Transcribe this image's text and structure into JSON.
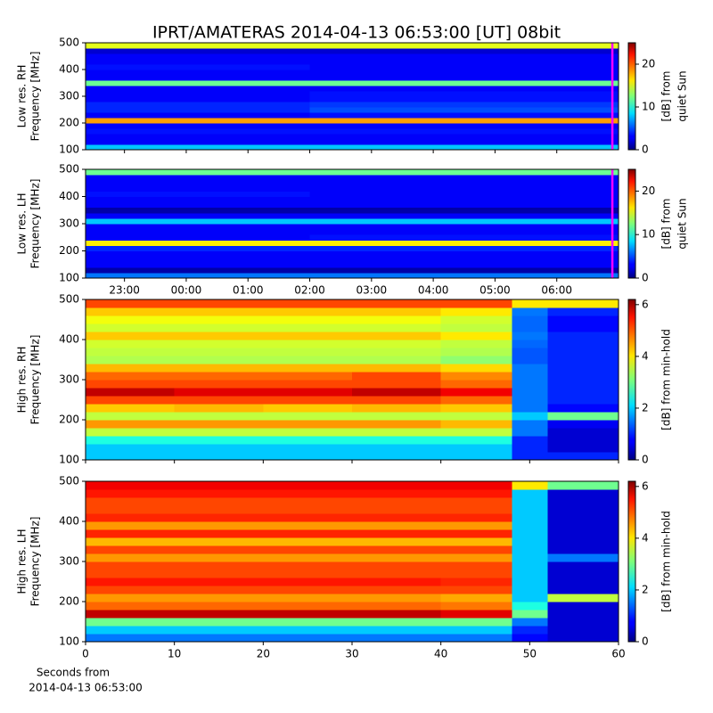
{
  "title": "IPRT/AMATERAS 2014-04-13 06:53:00 [UT]   08bit",
  "chart_data": [
    {
      "type": "heatmap",
      "colormap": "jet",
      "ylabel": [
        "Low res. RH",
        "Frequency [MHz]"
      ],
      "clabel": [
        "[dB] from",
        "quiet Sun"
      ],
      "ylim": [
        100,
        500
      ],
      "yticks": [
        100,
        200,
        300,
        400,
        500
      ],
      "xlim": [
        22.37,
        31.0
      ],
      "xticks": [
        {
          "value": 23,
          "label": "23:00"
        },
        {
          "value": 24,
          "label": "00:00"
        },
        {
          "value": 25,
          "label": "01:00"
        },
        {
          "value": 26,
          "label": "02:00"
        },
        {
          "value": 27,
          "label": "03:00"
        },
        {
          "value": 28,
          "label": "04:00"
        },
        {
          "value": 29,
          "label": "05:00"
        },
        {
          "value": 30,
          "label": "06:00"
        }
      ],
      "xtick_labels": false,
      "zlim": [
        0,
        25
      ],
      "zticks": [
        0,
        10,
        20
      ],
      "marker": {
        "x": 30.9,
        "color": "#ff00ff"
      },
      "x_bins": [
        22.37,
        26.0,
        31.0
      ],
      "y_bins": [
        100,
        120,
        140,
        160,
        180,
        200,
        220,
        240,
        260,
        280,
        300,
        320,
        340,
        360,
        380,
        400,
        420,
        440,
        460,
        480,
        500
      ],
      "values": [
        [
          8,
          8
        ],
        [
          3,
          3
        ],
        [
          3,
          3
        ],
        [
          3.5,
          3.5
        ],
        [
          3,
          3
        ],
        [
          18,
          18
        ],
        [
          3,
          3.5
        ],
        [
          4,
          5
        ],
        [
          4,
          4.5
        ],
        [
          3,
          3.5
        ],
        [
          3,
          3.5
        ],
        [
          3,
          3
        ],
        [
          12,
          12
        ],
        [
          3,
          3
        ],
        [
          3,
          3
        ],
        [
          3.5,
          3
        ],
        [
          3,
          3
        ],
        [
          3,
          3
        ],
        [
          2,
          2
        ],
        [
          15,
          15
        ]
      ]
    },
    {
      "type": "heatmap",
      "colormap": "jet",
      "ylabel": [
        "Low res. LH",
        "Frequency [MHz]"
      ],
      "clabel": [
        "[dB] from",
        "quiet Sun"
      ],
      "ylim": [
        100,
        500
      ],
      "yticks": [
        100,
        200,
        300,
        400,
        500
      ],
      "xlim": [
        22.37,
        31.0
      ],
      "xticks": [
        {
          "value": 23,
          "label": "23:00"
        },
        {
          "value": 24,
          "label": "00:00"
        },
        {
          "value": 25,
          "label": "01:00"
        },
        {
          "value": 26,
          "label": "02:00"
        },
        {
          "value": 27,
          "label": "03:00"
        },
        {
          "value": 28,
          "label": "04:00"
        },
        {
          "value": 29,
          "label": "05:00"
        },
        {
          "value": 30,
          "label": "06:00"
        }
      ],
      "xtick_labels": true,
      "zlim": [
        0,
        25
      ],
      "zticks": [
        0,
        10,
        20
      ],
      "marker": {
        "x": 30.9,
        "color": "#ff00ff"
      },
      "x_bins": [
        22.37,
        26.0,
        31.0
      ],
      "y_bins": [
        100,
        120,
        140,
        160,
        180,
        200,
        220,
        240,
        260,
        280,
        300,
        320,
        340,
        360,
        380,
        400,
        420,
        440,
        460,
        480,
        500
      ],
      "values": [
        [
          6,
          6
        ],
        [
          1,
          1
        ],
        [
          3,
          3
        ],
        [
          3,
          3
        ],
        [
          3,
          3
        ],
        [
          4,
          4
        ],
        [
          16,
          16
        ],
        [
          3,
          3.5
        ],
        [
          3,
          3
        ],
        [
          3,
          3
        ],
        [
          8,
          8
        ],
        [
          3,
          3
        ],
        [
          1,
          1
        ],
        [
          3,
          3
        ],
        [
          3,
          3
        ],
        [
          3.5,
          3
        ],
        [
          3,
          3
        ],
        [
          3,
          3
        ],
        [
          3,
          3
        ],
        [
          12,
          12
        ]
      ]
    },
    {
      "type": "heatmap",
      "colormap": "jet",
      "ylabel": [
        "High res. RH",
        "Frequency [MHz]"
      ],
      "clabel": [
        "[dB] from min-hold"
      ],
      "ylim": [
        100,
        500
      ],
      "yticks": [
        100,
        200,
        300,
        400,
        500
      ],
      "xlim": [
        0,
        60
      ],
      "xticks": [
        0,
        10,
        20,
        30,
        40,
        50,
        60
      ],
      "xtick_labels": false,
      "zlim": [
        0,
        6.2
      ],
      "zticks": [
        0,
        2,
        4,
        6
      ],
      "x_bins": [
        0,
        10,
        20,
        30,
        40,
        48,
        52,
        60
      ],
      "y_bins": [
        100,
        120,
        140,
        160,
        180,
        200,
        220,
        240,
        260,
        280,
        300,
        320,
        340,
        360,
        380,
        400,
        420,
        440,
        460,
        480,
        500
      ],
      "values": [
        [
          2,
          2,
          2,
          2,
          2,
          1,
          1
        ],
        [
          2,
          2,
          2,
          2,
          2,
          1,
          0.5
        ],
        [
          2.5,
          2.5,
          2.5,
          2.5,
          2.5,
          1,
          0.5
        ],
        [
          3.5,
          3.5,
          3.5,
          3.5,
          3.5,
          1.5,
          0.5
        ],
        [
          4.5,
          4.5,
          4.5,
          4.5,
          4.3,
          1.5,
          0.7
        ],
        [
          3.5,
          3.5,
          3.5,
          3.5,
          3.5,
          2,
          3
        ],
        [
          4.2,
          4.3,
          4.2,
          4.3,
          4.2,
          1.5,
          0.8
        ],
        [
          5,
          5,
          5,
          5,
          4.8,
          1.5,
          1
        ],
        [
          5.8,
          5.6,
          5.6,
          5.8,
          5.5,
          1.5,
          1
        ],
        [
          5,
          5,
          5,
          5,
          4.8,
          1.5,
          1
        ],
        [
          4.8,
          4.8,
          4.8,
          5,
          4.6,
          1.5,
          1
        ],
        [
          4.3,
          4.3,
          4.3,
          4.3,
          4.1,
          1.5,
          1
        ],
        [
          3.4,
          3.4,
          3.4,
          3.4,
          3.2,
          1.3,
          1
        ],
        [
          3.5,
          3.5,
          3.5,
          3.5,
          3.4,
          1.3,
          1
        ],
        [
          3.6,
          3.6,
          3.6,
          3.6,
          3.5,
          1.4,
          1
        ],
        [
          4.2,
          4.2,
          4.2,
          4.2,
          4,
          1.5,
          1
        ],
        [
          3.6,
          3.6,
          3.6,
          3.6,
          3.5,
          1.4,
          0.8
        ],
        [
          3.8,
          3.8,
          3.8,
          3.8,
          3.6,
          1.4,
          0.8
        ],
        [
          4.2,
          4.2,
          4.2,
          4.2,
          4,
          1.5,
          1
        ],
        [
          5,
          5,
          5,
          5,
          5,
          4,
          4
        ]
      ]
    },
    {
      "type": "heatmap",
      "colormap": "jet",
      "ylabel": [
        "High res. LH",
        "Frequency [MHz]"
      ],
      "clabel": [
        "[dB] from min-hold"
      ],
      "ylim": [
        100,
        500
      ],
      "yticks": [
        100,
        200,
        300,
        400,
        500
      ],
      "xlim": [
        0,
        60
      ],
      "xticks": [
        0,
        10,
        20,
        30,
        40,
        50,
        60
      ],
      "xtick_labels": true,
      "xlabel": [
        "Seconds from",
        "2014-04-13 06:53:00"
      ],
      "zlim": [
        0,
        6.2
      ],
      "zticks": [
        0,
        2,
        4,
        6
      ],
      "x_bins": [
        0,
        10,
        20,
        30,
        40,
        48,
        52,
        60
      ],
      "y_bins": [
        100,
        120,
        140,
        160,
        180,
        200,
        220,
        240,
        260,
        280,
        300,
        320,
        340,
        360,
        380,
        400,
        420,
        440,
        460,
        480,
        500
      ],
      "values": [
        [
          1.5,
          1.5,
          1.5,
          1.5,
          1.5,
          0.8,
          0.5
        ],
        [
          2,
          2,
          2,
          2,
          2,
          1,
          0.5
        ],
        [
          3,
          3,
          3,
          3,
          3,
          1.5,
          0.5
        ],
        [
          5.8,
          5.8,
          5.8,
          5.8,
          5.6,
          3,
          0.5
        ],
        [
          4.8,
          4.8,
          4.8,
          4.8,
          4.7,
          2.5,
          0.5
        ],
        [
          4.5,
          4.5,
          4.5,
          4.5,
          4.4,
          2,
          3.5
        ],
        [
          5,
          5,
          5,
          5,
          5,
          2,
          0.5
        ],
        [
          5.3,
          5.3,
          5.3,
          5.3,
          5.2,
          2,
          0.5
        ],
        [
          5,
          5,
          5,
          5,
          5,
          2,
          0.5
        ],
        [
          5,
          5,
          5,
          5,
          5,
          2,
          0.5
        ],
        [
          4.5,
          4.5,
          4.5,
          4.5,
          4.5,
          2,
          1.5
        ],
        [
          5,
          5,
          5,
          5,
          5,
          2,
          0.5
        ],
        [
          4.3,
          4.3,
          4.3,
          4.3,
          4.3,
          2,
          0.5
        ],
        [
          5.2,
          5.2,
          5.2,
          5.2,
          5.2,
          2,
          0.5
        ],
        [
          4.5,
          4.5,
          4.5,
          4.5,
          4.5,
          2,
          0.5
        ],
        [
          5.2,
          5.2,
          5.2,
          5.2,
          5.2,
          2,
          0.5
        ],
        [
          5,
          5,
          5,
          5,
          5,
          2,
          0.5
        ],
        [
          5,
          5,
          5,
          5,
          5,
          2,
          0.5
        ],
        [
          5.3,
          5.3,
          5.3,
          5.3,
          5.3,
          2,
          0.5
        ],
        [
          5.5,
          5.5,
          5.5,
          5.5,
          5.5,
          4,
          3
        ]
      ]
    }
  ]
}
